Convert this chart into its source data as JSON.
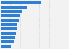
{
  "values": [
    37.6,
    24.0,
    19.5,
    17.5,
    16.2,
    15.4,
    14.7,
    14.0,
    13.3,
    12.6,
    9.8
  ],
  "bar_color": "#2f80d4",
  "background_color": "#f2f2f2",
  "bar_height": 0.78,
  "grid_color": "#d8d8d8",
  "n_gridlines": 7
}
